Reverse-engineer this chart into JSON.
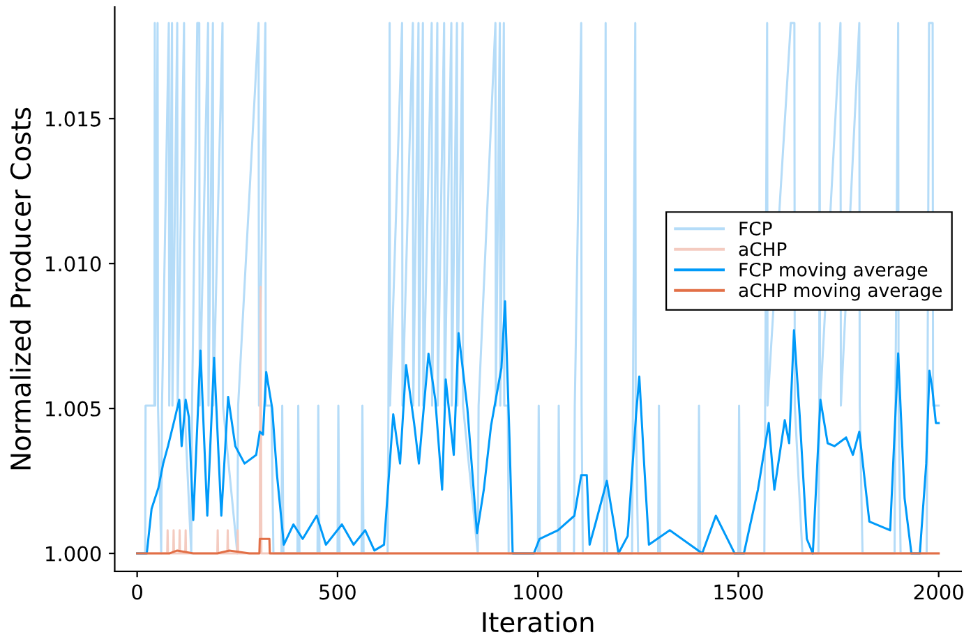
{
  "chart_data": {
    "type": "line",
    "xlabel": "Iteration",
    "ylabel": "Normalized Producer Costs",
    "xlim": [
      -56,
      2056
    ],
    "xticks": [
      0,
      500,
      1000,
      1500,
      2000
    ],
    "ylim": [
      0.99938,
      1.01885
    ],
    "yticks": [
      {
        "value": 1.0,
        "label": "1.000"
      },
      {
        "value": 1.005,
        "label": "1.005"
      },
      {
        "value": 1.01,
        "label": "1.010"
      },
      {
        "value": 1.015,
        "label": "1.015"
      }
    ],
    "grid": false,
    "legend": "right",
    "marker": "none",
    "line_style": "solid",
    "series": [
      {
        "name": "FCP",
        "color": "#b5dcf8",
        "x": [
          0,
          20,
          21,
          43,
          44,
          45,
          51,
          52,
          60,
          62,
          79,
          80,
          87,
          88,
          100,
          101,
          117,
          118,
          135,
          137,
          150,
          155,
          156,
          177,
          178,
          189,
          190,
          213,
          214,
          250,
          252,
          303,
          304,
          320,
          321,
          335,
          340,
          360,
          362,
          365,
          400,
          402,
          405,
          450,
          452,
          455,
          500,
          502,
          505,
          560,
          562,
          565,
          625,
          627,
          630,
          631,
          661,
          662,
          688,
          689,
          702,
          703,
          713,
          714,
          735,
          736,
          749,
          750,
          766,
          767,
          784,
          785,
          798,
          799,
          812,
          813,
          850,
          852,
          894,
          895,
          905,
          906,
          915,
          916,
          925,
          927,
          1000,
          1002,
          1005,
          1050,
          1052,
          1055,
          1090,
          1092,
          1108,
          1109,
          1112,
          1165,
          1167,
          1169,
          1170,
          1173,
          1235,
          1237,
          1243,
          1244,
          1250,
          1300,
          1302,
          1305,
          1400,
          1402,
          1405,
          1500,
          1502,
          1505,
          1565,
          1567,
          1572,
          1573,
          1631,
          1640,
          1641,
          1660,
          1700,
          1702,
          1703,
          1704,
          1755,
          1756,
          1802,
          1803,
          1810,
          1890,
          1892,
          1899,
          1900,
          1905,
          1970,
          1972,
          1976,
          1985,
          1986,
          2000
        ],
        "values": [
          1.0,
          1.0,
          1.0051,
          1.0051,
          1.0183,
          1.0051,
          1.0183,
          1.0051,
          1.0,
          1.0051,
          1.0183,
          1.0051,
          1.0183,
          1.0051,
          1.0183,
          1.0051,
          1.0183,
          1.0051,
          1.0,
          1.0051,
          1.0183,
          1.0183,
          1.0051,
          1.0183,
          1.0051,
          1.0183,
          1.0051,
          1.0183,
          1.0051,
          1.0,
          1.0051,
          1.0183,
          1.0051,
          1.0183,
          1.0051,
          1.0051,
          1.0,
          1.0,
          1.0051,
          1.0,
          1.0,
          1.0051,
          1.0,
          1.0,
          1.0051,
          1.0,
          1.0,
          1.0051,
          1.0,
          1.0,
          1.0051,
          1.0,
          1.0,
          1.0051,
          1.0183,
          1.0051,
          1.0183,
          1.0051,
          1.0183,
          1.0051,
          1.0183,
          1.0051,
          1.0183,
          1.0051,
          1.0183,
          1.0051,
          1.0183,
          1.0051,
          1.0183,
          1.0051,
          1.0183,
          1.0051,
          1.0183,
          1.0051,
          1.0183,
          1.0051,
          1.0,
          1.0051,
          1.0183,
          1.0051,
          1.0183,
          1.0051,
          1.0183,
          1.0051,
          1.0051,
          1.0,
          1.0,
          1.0051,
          1.0,
          1.0,
          1.0051,
          1.0,
          1.0,
          1.0051,
          1.0183,
          1.0051,
          1.0,
          1.0,
          1.0051,
          1.0183,
          1.0051,
          1.0,
          1.0,
          1.0051,
          1.0183,
          1.0051,
          1.0,
          1.0,
          1.0051,
          1.0,
          1.0,
          1.0051,
          1.0,
          1.0,
          1.0051,
          1.0,
          1.0,
          1.0051,
          1.0183,
          1.0051,
          1.0183,
          1.0183,
          1.0051,
          1.0,
          1.0,
          1.0051,
          1.0183,
          1.0051,
          1.0183,
          1.0051,
          1.0183,
          1.0051,
          1.0,
          1.0,
          1.0051,
          1.0183,
          1.0051,
          1.0,
          1.0,
          1.0051,
          1.0183,
          1.0183,
          1.0051,
          1.0051
        ]
      },
      {
        "name": "aCHP",
        "color": "#f4cbc0",
        "x": [
          0,
          75,
          76,
          77,
          90,
          91,
          92,
          105,
          106,
          107,
          120,
          121,
          122,
          200,
          201,
          202,
          225,
          226,
          227,
          250,
          251,
          252,
          306,
          308,
          310,
          2000
        ],
        "values": [
          1.0,
          1.0,
          1.0008,
          1.0,
          1.0,
          1.0008,
          1.0,
          1.0,
          1.0008,
          1.0,
          1.0,
          1.0008,
          1.0,
          1.0,
          1.0008,
          1.0,
          1.0,
          1.0008,
          1.0,
          1.0,
          1.0008,
          1.0,
          1.0,
          1.0092,
          1.0,
          1.0
        ]
      },
      {
        "name": "FCP moving average",
        "color": "#009af9",
        "x": [
          0,
          24,
          36,
          53,
          65,
          77,
          94,
          105,
          111,
          121,
          129,
          140,
          158,
          175,
          192,
          210,
          227,
          245,
          268,
          297,
          306,
          314,
          322,
          337,
          349,
          366,
          390,
          413,
          448,
          471,
          511,
          540,
          569,
          592,
          616,
          639,
          656,
          671,
          691,
          703,
          727,
          744,
          761,
          770,
          790,
          802,
          824,
          848,
          865,
          883,
          909,
          918,
          929,
          937,
          990,
          1004,
          1050,
          1091,
          1108,
          1122,
          1129,
          1143,
          1172,
          1190,
          1201,
          1224,
          1245,
          1253,
          1265,
          1277,
          1329,
          1410,
          1444,
          1491,
          1514,
          1549,
          1576,
          1590,
          1616,
          1627,
          1639,
          1653,
          1671,
          1686,
          1705,
          1723,
          1740,
          1769,
          1786,
          1802,
          1827,
          1879,
          1899,
          1915,
          1932,
          1953,
          1969,
          1977,
          1984,
          1993,
          2000
        ],
        "values": [
          1.0,
          1.0,
          1.00154,
          1.00226,
          1.0031,
          1.0037,
          1.00466,
          1.0053,
          1.0037,
          1.0053,
          1.0047,
          1.00115,
          1.007,
          1.0013,
          1.00675,
          1.0013,
          1.0054,
          1.0037,
          1.0031,
          1.0034,
          1.0042,
          1.0041,
          1.00626,
          1.005,
          1.0027,
          1.0003,
          1.001,
          1.0005,
          1.0013,
          1.0003,
          1.001,
          1.0003,
          1.0008,
          1.0001,
          1.0003,
          1.0048,
          1.0031,
          1.0065,
          1.0045,
          1.0031,
          1.00689,
          1.0053,
          1.0022,
          1.006,
          1.0034,
          1.0076,
          1.005,
          1.0007,
          1.0022,
          1.0044,
          1.0064,
          1.0087,
          1.004,
          1.0,
          1.0,
          1.0005,
          1.0008,
          1.0013,
          1.0027,
          1.0027,
          1.0003,
          1.001,
          1.0025,
          1.001,
          1.0,
          1.0006,
          1.0048,
          1.0061,
          1.0031,
          1.0003,
          1.0008,
          1.0,
          1.0013,
          1.0,
          1.0,
          1.0022,
          1.0045,
          1.0022,
          1.0046,
          1.0038,
          1.0077,
          1.0048,
          1.0005,
          1.0,
          1.0053,
          1.0038,
          1.0037,
          1.004,
          1.0034,
          1.0042,
          1.0011,
          1.0008,
          1.0069,
          1.0019,
          1.0,
          1.0,
          1.0031,
          1.0063,
          1.0057,
          1.0045,
          1.0045
        ]
      },
      {
        "name": "aCHP moving average",
        "color": "#e26f46",
        "x": [
          0,
          80,
          100,
          140,
          200,
          230,
          280,
          305,
          306,
          330,
          331,
          2000
        ],
        "values": [
          1.0,
          1.0,
          1.0001,
          1.0,
          1.0,
          1.0001,
          1.0,
          1.0,
          1.0005,
          1.0005,
          1.0,
          1.0
        ]
      }
    ]
  }
}
